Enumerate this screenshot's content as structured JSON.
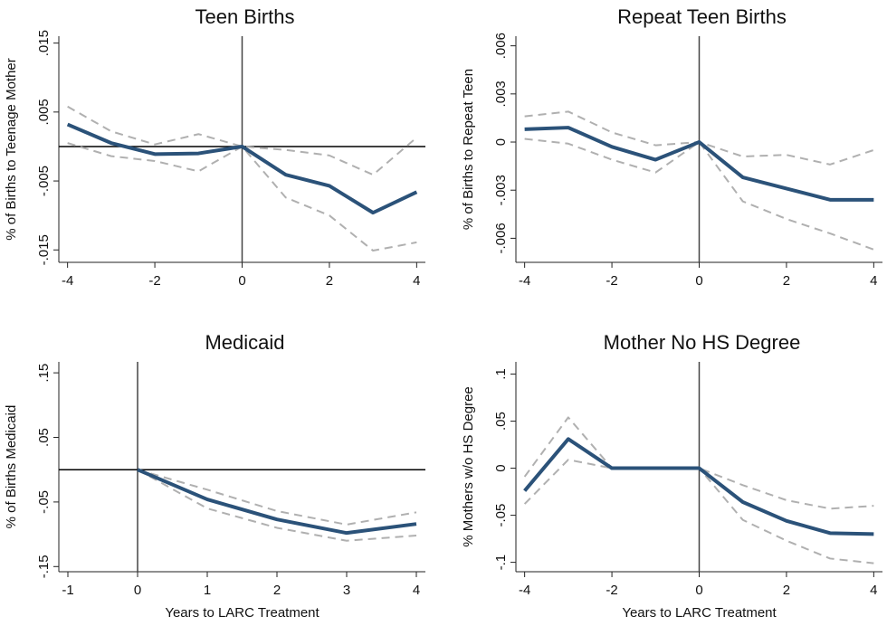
{
  "chart_data": [
    {
      "type": "line",
      "title": "Teen Births",
      "ylabel": "% of Births to Teenage Mother",
      "x": [
        -4,
        -3,
        -2,
        -1,
        0,
        1,
        2,
        3,
        4
      ],
      "xlim": [
        -4.2,
        4.2
      ],
      "xticks": [
        -4,
        -2,
        0,
        2,
        4
      ],
      "ylim": [
        -0.0168,
        0.016
      ],
      "yticks": [
        {
          "value": -0.015,
          "label": "-.015"
        },
        {
          "value": -0.005,
          "label": "-.005"
        },
        {
          "value": 0.005,
          "label": ".005"
        },
        {
          "value": 0.015,
          "label": ".015"
        }
      ],
      "zero_line": true,
      "series": [
        {
          "color": "#b0b0b0",
          "dashed": true,
          "values": [
            0.0058,
            0.0022,
            0.0003,
            0.0018,
            0,
            -0.0005,
            -0.0013,
            -0.0041,
            0.0013
          ]
        },
        {
          "color": "#b0b0b0",
          "dashed": true,
          "values": [
            0.0005,
            -0.0014,
            -0.0021,
            -0.0036,
            0,
            -0.0074,
            -0.01,
            -0.0151,
            -0.0139
          ]
        },
        {
          "color": "#2b5279",
          "dashed": false,
          "values": [
            0.0032,
            0.0005,
            -0.0011,
            -0.001,
            0,
            -0.0041,
            -0.0057,
            -0.0096,
            -0.0066
          ]
        }
      ]
    },
    {
      "type": "line",
      "title": "Repeat Teen Births",
      "ylabel": "% of Births to Repeat Teen",
      "x": [
        -4,
        -3,
        -2,
        -1,
        0,
        1,
        2,
        3,
        4
      ],
      "xlim": [
        -4.2,
        4.2
      ],
      "xticks": [
        -4,
        -2,
        0,
        2,
        4
      ],
      "ylim": [
        -0.0075,
        0.0066
      ],
      "yticks": [
        {
          "value": -0.006,
          "label": "-.006"
        },
        {
          "value": -0.003,
          "label": "-.003"
        },
        0,
        {
          "value": 0.003,
          "label": ".003"
        },
        {
          "value": 0.006,
          "label": ".006"
        }
      ],
      "zero_line": false,
      "series": [
        {
          "color": "#b0b0b0",
          "dashed": true,
          "values": [
            0.0016,
            0.0019,
            0.0006,
            -0.0002,
            0,
            -0.0009,
            -0.0008,
            -0.0014,
            -0.0005
          ]
        },
        {
          "color": "#b0b0b0",
          "dashed": true,
          "values": [
            0.0002,
            -0.0001,
            -0.0011,
            -0.0019,
            0,
            -0.0037,
            -0.0048,
            -0.0057,
            -0.0067
          ]
        },
        {
          "color": "#2b5279",
          "dashed": false,
          "values": [
            0.0008,
            0.0009,
            -0.0003,
            -0.0011,
            0,
            -0.0022,
            -0.0029,
            -0.0036,
            -0.0036
          ]
        }
      ]
    },
    {
      "type": "line",
      "title": "Medicaid",
      "ylabel": "% of Births Medicaid",
      "xlabel": "Years to LARC Treatment",
      "x": [
        0,
        1,
        2,
        3,
        4
      ],
      "xlim": [
        -1.13,
        4.13
      ],
      "xticks": [
        -1,
        0,
        1,
        2,
        3,
        4
      ],
      "ylim": [
        -0.158,
        0.167
      ],
      "yticks": [
        {
          "value": -0.15,
          "label": "-.15"
        },
        {
          "value": -0.05,
          "label": "-.05"
        },
        {
          "value": 0.05,
          "label": ".05"
        },
        {
          "value": 0.15,
          "label": ".15"
        }
      ],
      "zero_line": true,
      "series": [
        {
          "color": "#b0b0b0",
          "dashed": true,
          "values": [
            0,
            -0.031,
            -0.064,
            -0.085,
            -0.066
          ]
        },
        {
          "color": "#b0b0b0",
          "dashed": true,
          "values": [
            0,
            -0.06,
            -0.09,
            -0.11,
            -0.102
          ]
        },
        {
          "color": "#2b5279",
          "dashed": false,
          "values": [
            0,
            -0.046,
            -0.077,
            -0.098,
            -0.084
          ]
        }
      ]
    },
    {
      "type": "line",
      "title": "Mother No HS Degree",
      "ylabel": "% Mothers w/o HS Degree",
      "xlabel": "Years to LARC Treatment",
      "x": [
        -4,
        -3,
        -2,
        -1,
        0,
        1,
        2,
        3,
        4
      ],
      "xlim": [
        -4.2,
        4.2
      ],
      "xticks": [
        -4,
        -2,
        0,
        2,
        4
      ],
      "ylim": [
        -0.11,
        0.113
      ],
      "yticks": [
        {
          "value": -0.1,
          "label": "-.1"
        },
        {
          "value": -0.05,
          "label": "-.05"
        },
        0,
        {
          "value": 0.05,
          "label": ".05"
        },
        {
          "value": 0.1,
          "label": ".1"
        }
      ],
      "zero_line": false,
      "series": [
        {
          "color": "#b0b0b0",
          "dashed": true,
          "values": [
            -0.009,
            0.054,
            0,
            0,
            0,
            -0.018,
            -0.034,
            -0.043,
            -0.04
          ]
        },
        {
          "color": "#b0b0b0",
          "dashed": true,
          "values": [
            -0.038,
            0.009,
            0,
            0,
            0,
            -0.055,
            -0.077,
            -0.096,
            -0.101
          ]
        },
        {
          "color": "#2b5279",
          "dashed": false,
          "values": [
            -0.024,
            0.031,
            0,
            0,
            0,
            -0.036,
            -0.056,
            -0.069,
            -0.07
          ]
        }
      ]
    }
  ]
}
